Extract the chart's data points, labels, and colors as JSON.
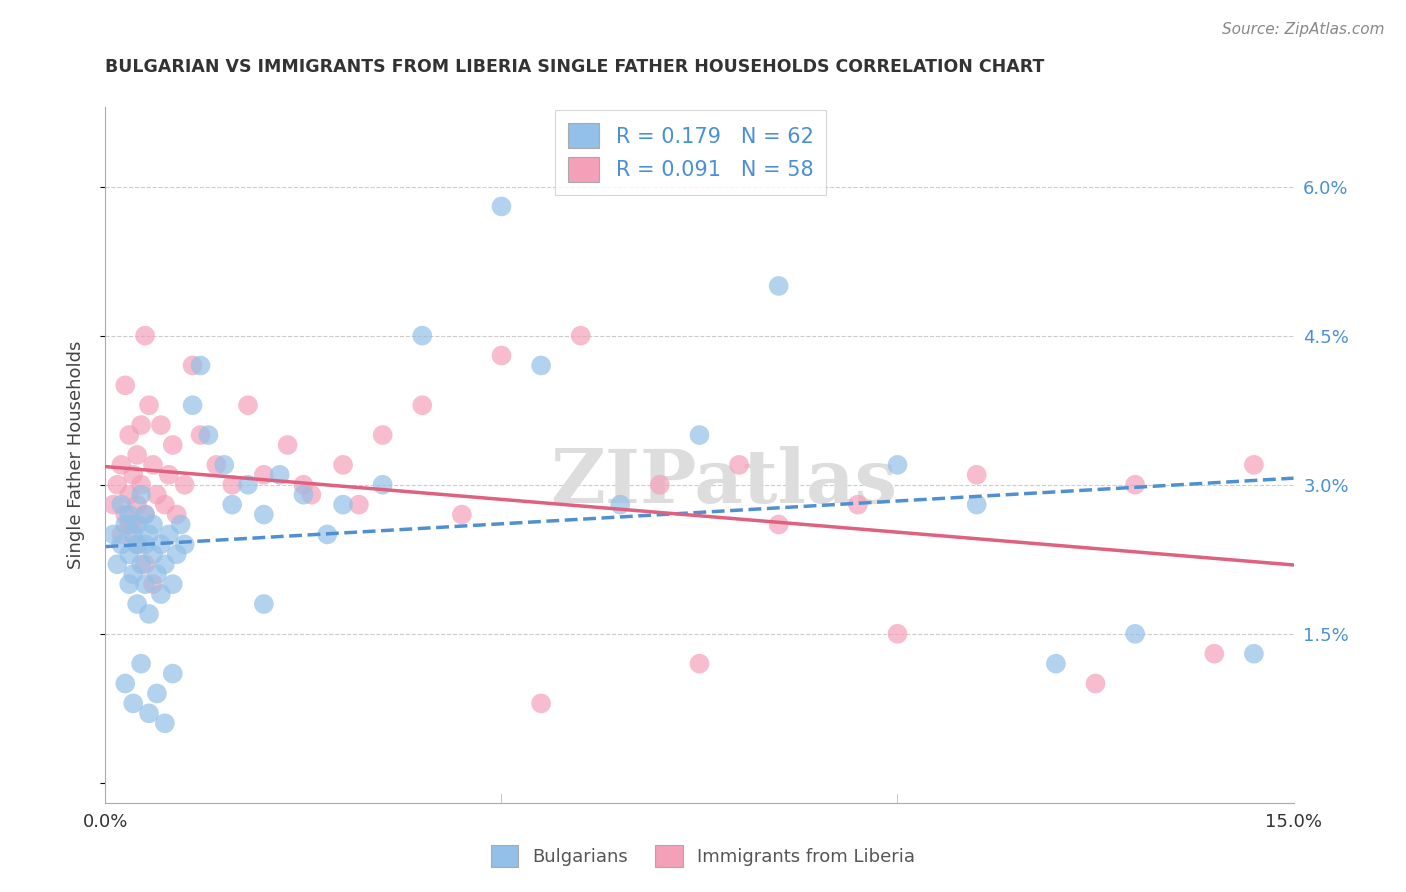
{
  "title": "BULGARIAN VS IMMIGRANTS FROM LIBERIA SINGLE FATHER HOUSEHOLDS CORRELATION CHART",
  "source": "Source: ZipAtlas.com",
  "ylabel": "Single Father Households",
  "xlim": [
    0.0,
    15.0
  ],
  "ylim": [
    -0.2,
    6.8
  ],
  "yticks": [
    0.0,
    1.5,
    3.0,
    4.5,
    6.0
  ],
  "blue_color": "#92C0E8",
  "pink_color": "#F4A0B8",
  "blue_line_color": "#5090D0",
  "pink_line_color": "#E06080",
  "watermark": "ZIPatlas",
  "bulgarians_x": [
    0.1,
    0.15,
    0.2,
    0.2,
    0.25,
    0.3,
    0.3,
    0.3,
    0.35,
    0.35,
    0.4,
    0.4,
    0.4,
    0.45,
    0.45,
    0.5,
    0.5,
    0.5,
    0.55,
    0.55,
    0.6,
    0.6,
    0.65,
    0.7,
    0.7,
    0.75,
    0.8,
    0.85,
    0.9,
    0.95,
    1.0,
    1.1,
    1.2,
    1.3,
    1.5,
    1.6,
    1.8,
    2.0,
    2.2,
    2.5,
    2.8,
    3.0,
    3.5,
    4.0,
    5.0,
    5.5,
    6.5,
    7.5,
    8.5,
    10.0,
    11.0,
    12.0,
    13.0,
    14.5,
    0.25,
    0.35,
    0.45,
    0.55,
    0.65,
    0.75,
    0.85,
    2.0
  ],
  "bulgarians_y": [
    2.5,
    2.2,
    2.8,
    2.4,
    2.6,
    2.3,
    2.0,
    2.7,
    2.5,
    2.1,
    2.4,
    1.8,
    2.6,
    2.2,
    2.9,
    2.0,
    2.4,
    2.7,
    1.7,
    2.5,
    2.3,
    2.6,
    2.1,
    2.4,
    1.9,
    2.2,
    2.5,
    2.0,
    2.3,
    2.6,
    2.4,
    3.8,
    4.2,
    3.5,
    3.2,
    2.8,
    3.0,
    2.7,
    3.1,
    2.9,
    2.5,
    2.8,
    3.0,
    4.5,
    5.8,
    4.2,
    2.8,
    3.5,
    5.0,
    3.2,
    2.8,
    1.2,
    1.5,
    1.3,
    1.0,
    0.8,
    1.2,
    0.7,
    0.9,
    0.6,
    1.1,
    1.8
  ],
  "liberia_x": [
    0.1,
    0.15,
    0.2,
    0.2,
    0.25,
    0.3,
    0.3,
    0.35,
    0.35,
    0.4,
    0.4,
    0.45,
    0.5,
    0.5,
    0.55,
    0.6,
    0.65,
    0.7,
    0.75,
    0.8,
    0.85,
    0.9,
    1.0,
    1.1,
    1.2,
    1.4,
    1.6,
    1.8,
    2.0,
    2.3,
    2.6,
    3.0,
    3.5,
    4.0,
    5.0,
    6.0,
    7.0,
    8.0,
    9.5,
    11.0,
    13.0,
    14.5,
    0.3,
    0.4,
    0.5,
    0.6,
    0.25,
    0.45,
    2.5,
    3.2,
    4.5,
    7.5,
    10.0,
    12.5,
    5.5,
    14.0,
    8.5
  ],
  "liberia_y": [
    2.8,
    3.0,
    2.5,
    3.2,
    2.7,
    3.5,
    2.9,
    3.1,
    2.6,
    3.3,
    2.8,
    3.0,
    4.5,
    2.7,
    3.8,
    3.2,
    2.9,
    3.6,
    2.8,
    3.1,
    3.4,
    2.7,
    3.0,
    4.2,
    3.5,
    3.2,
    3.0,
    3.8,
    3.1,
    3.4,
    2.9,
    3.2,
    3.5,
    3.8,
    4.3,
    4.5,
    3.0,
    3.2,
    2.8,
    3.1,
    3.0,
    3.2,
    2.6,
    2.4,
    2.2,
    2.0,
    4.0,
    3.6,
    3.0,
    2.8,
    2.7,
    1.2,
    1.5,
    1.0,
    0.8,
    1.3,
    2.6
  ]
}
